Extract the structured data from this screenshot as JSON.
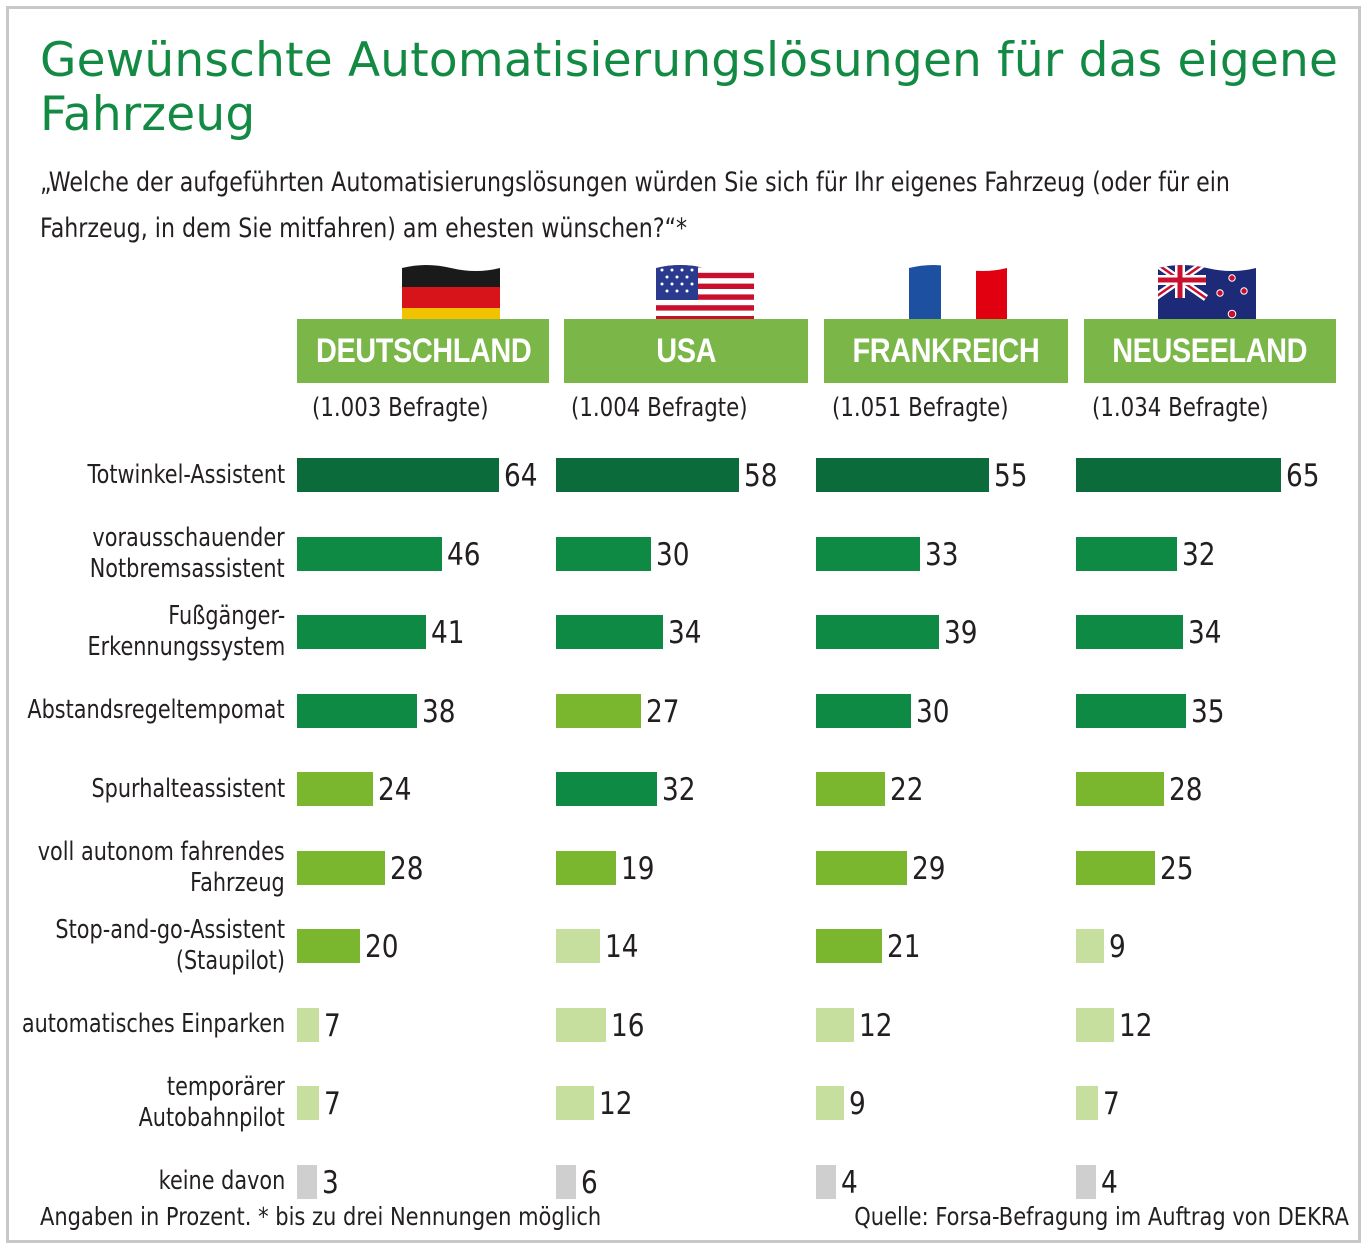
{
  "chart_data": {
    "type": "bar",
    "orientation": "horizontal",
    "title": "Gewünschte Automatisierungslösungen für das eigene Fahrzeug",
    "subtitle": "„Welche der aufgeführten Automatisierungslösungen würden Sie sich für Ihr eigenes Fahrzeug (oder für ein Fahrzeug, in dem Sie mitfahren) am ehesten wünschen?“*",
    "xlim": [
      0,
      70
    ],
    "categories": [
      "Totwinkel-Assistent",
      "vorausschauender Notbremsassistent",
      "Fußgänger-Erkennungssystem",
      "Abstandsregeltempomat",
      "Spurhalteassistent",
      "voll autonom fahrendes Fahrzeug",
      "Stop-and-go-Assistent (Staupilot)",
      "automatisches Einparken",
      "temporärer Autobahnpilot",
      "keine davon"
    ],
    "category_lines": [
      [
        "Totwinkel-Assistent"
      ],
      [
        "vorausschauender",
        "Notbremsassistent"
      ],
      [
        "Fußgänger-",
        "Erkennungssystem"
      ],
      [
        "Abstandsregeltempomat"
      ],
      [
        "Spurhalteassistent"
      ],
      [
        "voll autonom fahrendes",
        "Fahrzeug"
      ],
      [
        "Stop-and-go-Assistent",
        "(Staupilot)"
      ],
      [
        "automatisches Einparken"
      ],
      [
        "temporärer",
        "Autobahnpilot"
      ],
      [
        "keine davon"
      ]
    ],
    "series": [
      {
        "name": "DEUTSCHLAND",
        "respondents": "(1.003 Befragte)",
        "flag": "germany-flag",
        "values": [
          64,
          46,
          41,
          38,
          24,
          28,
          20,
          7,
          7,
          3
        ],
        "shades": [
          "d",
          "m",
          "m",
          "m",
          "l",
          "l",
          "l",
          "p",
          "p",
          "g"
        ]
      },
      {
        "name": "USA",
        "respondents": "(1.004 Befragte)",
        "flag": "usa-flag",
        "values": [
          58,
          30,
          34,
          27,
          32,
          19,
          14,
          16,
          12,
          6
        ],
        "shades": [
          "d",
          "m",
          "m",
          "l",
          "m",
          "l",
          "p",
          "p",
          "p",
          "g"
        ]
      },
      {
        "name": "FRANKREICH",
        "respondents": "(1.051 Befragte)",
        "flag": "france-flag",
        "values": [
          55,
          33,
          39,
          30,
          22,
          29,
          21,
          12,
          9,
          4
        ],
        "shades": [
          "d",
          "m",
          "m",
          "m",
          "l",
          "l",
          "l",
          "p",
          "p",
          "g"
        ]
      },
      {
        "name": "NEUSEELAND",
        "respondents": "(1.034 Befragte)",
        "flag": "new-zealand-flag",
        "values": [
          65,
          32,
          34,
          35,
          28,
          25,
          9,
          12,
          7,
          4
        ],
        "shades": [
          "d",
          "m",
          "m",
          "m",
          "l",
          "l",
          "p",
          "p",
          "p",
          "g"
        ]
      }
    ],
    "colors": {
      "d": "#0b6b3a",
      "m": "#0e8a45",
      "l": "#7ab72f",
      "p": "#c6df9e",
      "g": "#cfcfcf",
      "header": "#7ab648",
      "title": "#138a43"
    },
    "footnote_left": "Angaben in Prozent. * bis zu drei Nennungen möglich",
    "footnote_right": "Quelle: Forsa-Befragung im Auftrag von DEKRA"
  }
}
